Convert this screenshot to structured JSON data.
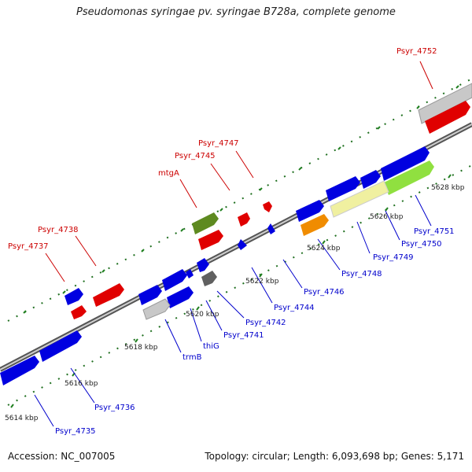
{
  "title": "Pseudomonas syringae pv. syringae B728a, complete genome",
  "footer": {
    "accession": "Accession: NC_007005",
    "summary": "Topology: circular; Length: 6,093,698 bp; Genes: 5,171"
  },
  "colors": {
    "blue": "#0000e0",
    "red": "#e00000",
    "gray": "#c8c8c8",
    "darkgray": "#606060",
    "olive": "#5e8a20",
    "orange": "#f08c00",
    "yellow": "#f0f0a0",
    "lime": "#90e040",
    "tick": "#208020",
    "label_blue": "#0000cc",
    "label_red": "#cc0000"
  },
  "kbp_ticks": [
    "5614 kbp",
    "5616 kbp",
    "5618 kbp",
    "5620 kbp",
    "5622 kbp",
    "5624 kbp",
    "5626 kbp",
    "5628 kbp"
  ],
  "labels": [
    "Psyr_4752",
    "Psyr_4747",
    "Psyr_4745",
    "mtgA",
    "Psyr_4738",
    "Psyr_4737",
    "Psyr_4751",
    "Psyr_4750",
    "Psyr_4749",
    "Psyr_4748",
    "Psyr_4746",
    "Psyr_4744",
    "Psyr_4742",
    "Psyr_4741",
    "thiG",
    "trmB",
    "Psyr_4736",
    "Psyr_4735"
  ]
}
